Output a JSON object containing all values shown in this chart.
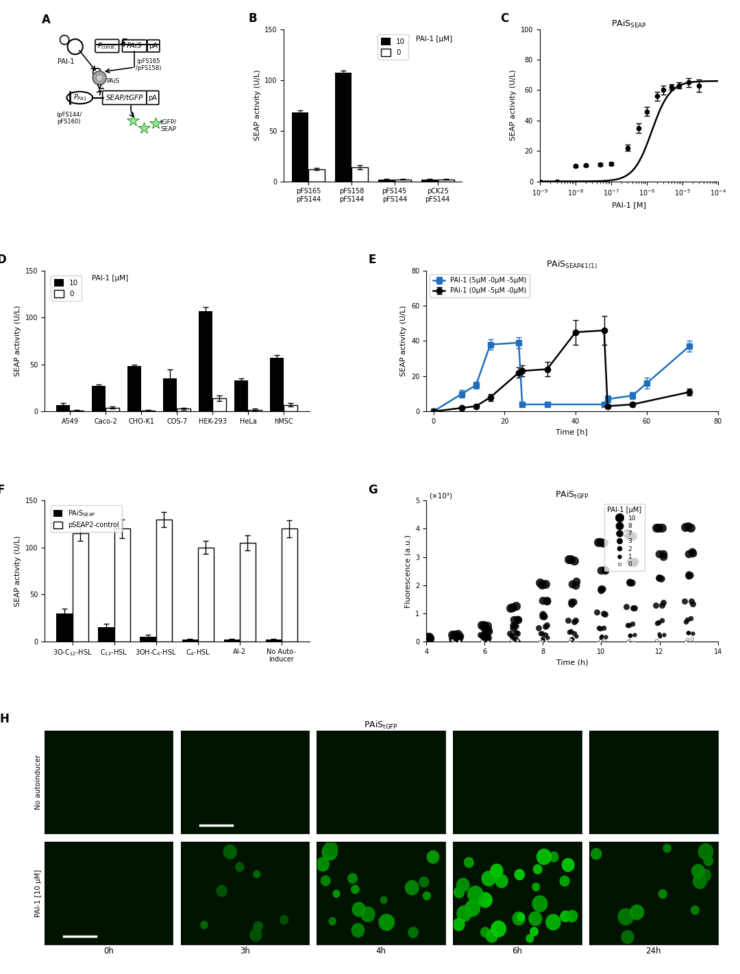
{
  "panel_B": {
    "categories": [
      "pFS165\npFS144",
      "pFS158\npFS144",
      "pFS145\npFS144",
      "pCK25\npFS144"
    ],
    "black_bars": [
      68,
      107,
      2,
      2
    ],
    "white_bars": [
      12,
      14,
      2,
      2
    ],
    "black_err": [
      2,
      2,
      0.5,
      0.5
    ],
    "white_err": [
      1,
      2,
      0.3,
      0.3
    ],
    "ylabel": "SEAP activity (U/L)",
    "ylim": [
      0,
      150
    ],
    "yticks": [
      0,
      50,
      100,
      150
    ]
  },
  "panel_C": {
    "x_data": [
      1e-09,
      3e-09,
      1e-08,
      2e-08,
      5e-08,
      1e-07,
      3e-07,
      6e-07,
      1e-06,
      2e-06,
      3e-06,
      5e-06,
      8e-06,
      1.5e-05,
      3e-05
    ],
    "y_data": [
      0,
      0,
      10,
      10.5,
      11,
      11.5,
      22,
      35,
      46,
      56,
      60,
      62,
      63,
      65,
      63
    ],
    "y_err": [
      0.2,
      0.2,
      0.8,
      0.8,
      1,
      1,
      2,
      3,
      3,
      3,
      3,
      2,
      2,
      3,
      4
    ],
    "ylabel": "SEAP activity (U/L)",
    "xlabel": "PAI-1 [M]",
    "ylim": [
      0,
      100
    ],
    "yticks": [
      0,
      20,
      40,
      60,
      80,
      100
    ],
    "title": "PAiS$_{\\mathrm{SEAP}}$"
  },
  "panel_D": {
    "categories": [
      "A549",
      "Caco-2",
      "CHO-K1",
      "COS-7",
      "HEK-293",
      "HeLa",
      "hMSC"
    ],
    "black_bars": [
      7,
      27,
      48,
      35,
      107,
      33,
      57
    ],
    "white_bars": [
      1,
      4,
      1,
      3,
      14,
      2,
      7
    ],
    "black_err": [
      2,
      2,
      2,
      10,
      4,
      2,
      3
    ],
    "white_err": [
      0.5,
      1,
      0.5,
      1,
      3,
      1,
      2
    ],
    "ylabel": "SEAP activity (U/L)",
    "ylim": [
      0,
      150
    ],
    "yticks": [
      0,
      50,
      100,
      150
    ]
  },
  "panel_E": {
    "title": "PAiS$_{\\mathrm{SEAP41(1)}}$",
    "blue_x": [
      0,
      8,
      12,
      16,
      24,
      25,
      32,
      48,
      49,
      56,
      60,
      72
    ],
    "blue_y": [
      0,
      10,
      15,
      38,
      39,
      4,
      4,
      4,
      7,
      9,
      16,
      37
    ],
    "blue_err": [
      0,
      2,
      2,
      3,
      3,
      1,
      1,
      1,
      2,
      2,
      3,
      3
    ],
    "black_x": [
      0,
      8,
      12,
      16,
      24,
      25,
      32,
      40,
      48,
      49,
      56,
      72
    ],
    "black_y": [
      0,
      2,
      3,
      8,
      22,
      23,
      24,
      45,
      46,
      3,
      4,
      11
    ],
    "black_err": [
      0,
      1,
      1,
      2,
      3,
      3,
      4,
      7,
      8,
      1,
      1,
      2
    ],
    "ylabel": "SEAP activity (U/L)",
    "xlabel": "Time [h]",
    "ylim": [
      0,
      80
    ],
    "yticks": [
      0,
      20,
      40,
      60,
      80
    ],
    "xticks": [
      0,
      20,
      40,
      60,
      80
    ],
    "legend_blue": "PAI-1 (5μM -0μM -5μM)",
    "legend_black": "PAI-1 (0μM -5μM -0μM)"
  },
  "panel_F": {
    "categories": [
      "3O-C$_{12}$-HSL",
      "C$_{12}$-HSL",
      "3OH-C$_4$-HSL",
      "C$_4$-HSL",
      "AI-2",
      "No Auto-\ninducer"
    ],
    "black_bars": [
      30,
      15,
      5,
      2,
      2,
      2
    ],
    "white_bars": [
      115,
      120,
      130,
      100,
      105,
      120
    ],
    "black_err": [
      5,
      4,
      2,
      1,
      1,
      1
    ],
    "white_err": [
      8,
      10,
      8,
      7,
      8,
      9
    ],
    "ylabel": "SEAP activity (U/L)",
    "ylim": [
      0,
      150
    ],
    "yticks": [
      0,
      50,
      100,
      150
    ]
  },
  "panel_G": {
    "title": "PAiS$_{\\mathrm{tGFP}}$",
    "xlabel": "Time (h)",
    "ylabel": "Fluorescence (a.u.)",
    "xlim": [
      4,
      14
    ],
    "ylim": [
      0,
      5
    ],
    "yticks": [
      0,
      1,
      2,
      3,
      4,
      5
    ],
    "xticks": [
      4,
      6,
      8,
      10,
      12,
      14
    ],
    "concentrations": [
      10,
      8,
      7,
      3,
      2,
      1,
      0
    ],
    "time_points": [
      4,
      5,
      6,
      7,
      8,
      9,
      10,
      11,
      12,
      13
    ],
    "fmax": [
      4.1,
      3.2,
      2.4,
      1.5,
      0.85,
      0.35,
      0.03
    ],
    "t_half": [
      8.0,
      8.3,
      8.6,
      9.0,
      9.5,
      10.0,
      12.0
    ],
    "rate": [
      0.9,
      0.8,
      0.8,
      0.7,
      0.6,
      0.5,
      0.4
    ]
  },
  "panel_H": {
    "col_labels": [
      "0h",
      "3h",
      "4h",
      "6h",
      "24h"
    ],
    "row0_label": "No autoinducer",
    "row1_label": "PAI-1 [10 μM]",
    "title": "PAiS$_{\\mathrm{tGFP}}$"
  }
}
